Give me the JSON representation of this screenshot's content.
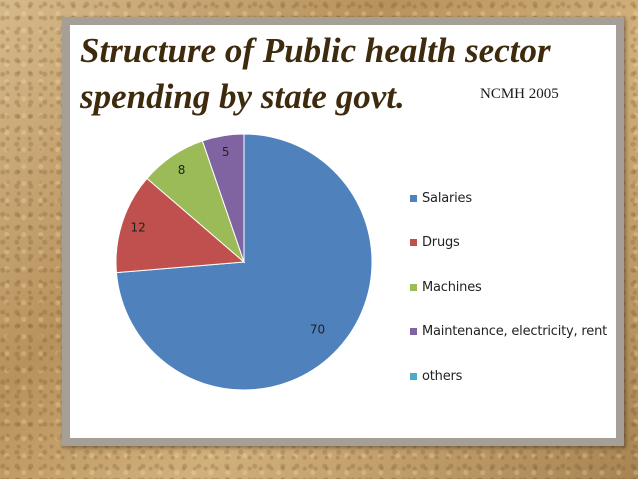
{
  "slide": {
    "title": "Structure of Public health sector\nspending by state govt.",
    "source_note": "NCMH 2005"
  },
  "chart_data": {
    "type": "pie",
    "title": "Structure of Public health sector spending by state govt.",
    "categories": [
      "Salaries",
      "Drugs",
      "Machines",
      "Maintenance, electricity, rent",
      "others"
    ],
    "values": [
      70,
      12,
      8,
      5,
      0
    ],
    "data_labels": [
      "70",
      "12",
      "8",
      "5",
      ""
    ],
    "colors": [
      "#4f81bd",
      "#c0504d",
      "#9bbb59",
      "#8064a2",
      "#4bacc6"
    ],
    "legend_position": "right"
  }
}
